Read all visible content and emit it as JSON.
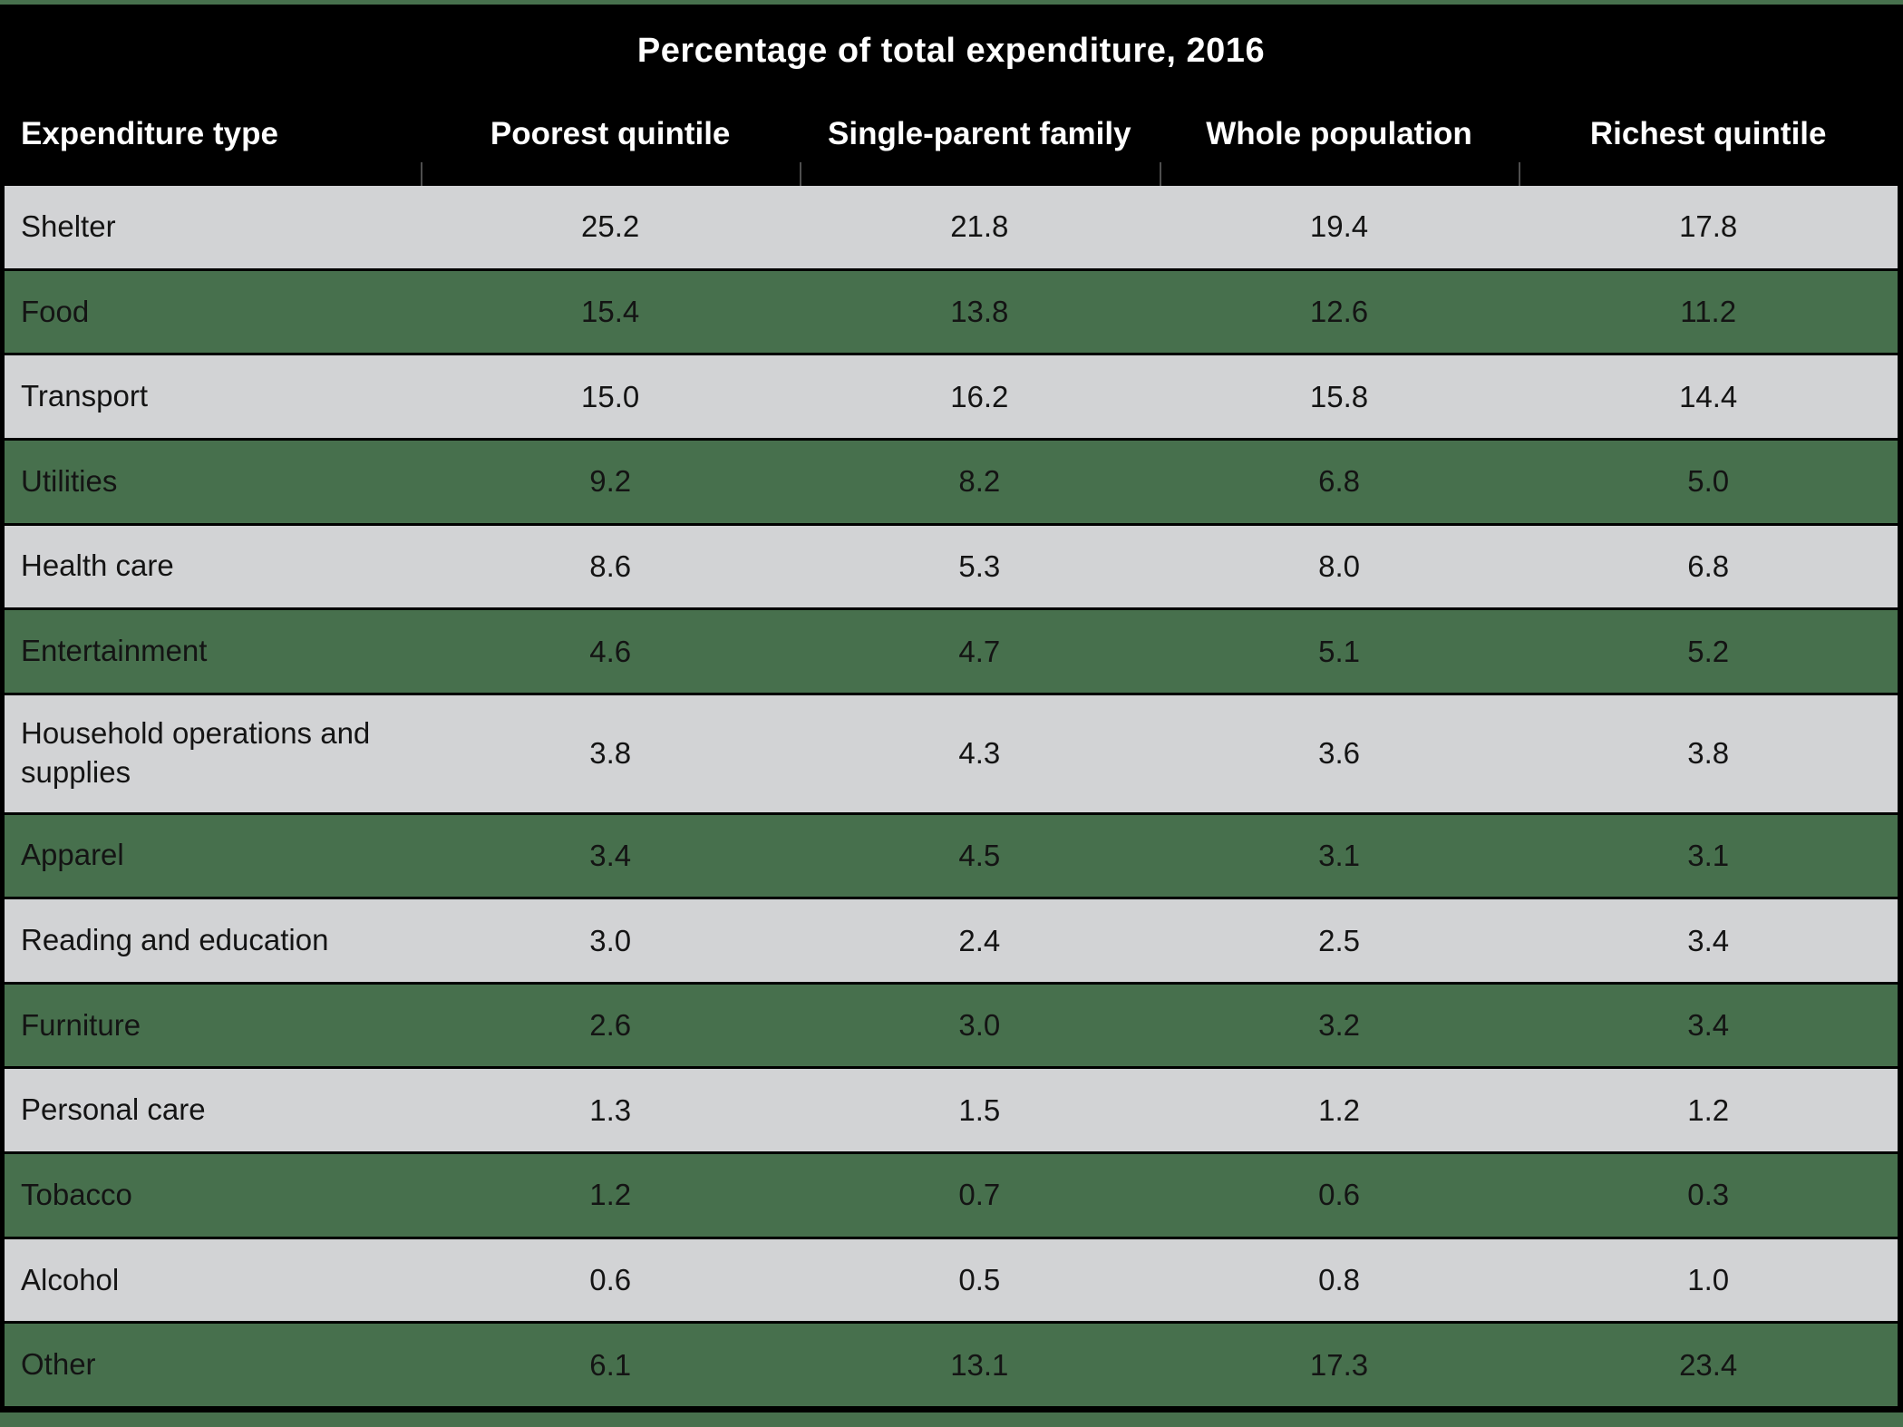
{
  "title": "Percentage of total expenditure, 2016",
  "columns": [
    "Expenditure type",
    "Poorest quintile",
    "Single-parent family",
    "Whole population",
    "Richest quintile"
  ],
  "rows": [
    {
      "label": "Shelter",
      "values": [
        "25.2",
        "21.8",
        "19.4",
        "17.8"
      ]
    },
    {
      "label": "Food",
      "values": [
        "15.4",
        "13.8",
        "12.6",
        "11.2"
      ]
    },
    {
      "label": "Transport",
      "values": [
        "15.0",
        "16.2",
        "15.8",
        "14.4"
      ]
    },
    {
      "label": "Utilities",
      "values": [
        "9.2",
        "8.2",
        "6.8",
        "5.0"
      ]
    },
    {
      "label": "Health care",
      "values": [
        "8.6",
        "5.3",
        "8.0",
        "6.8"
      ]
    },
    {
      "label": "Entertainment",
      "values": [
        "4.6",
        "4.7",
        "5.1",
        "5.2"
      ]
    },
    {
      "label": "Household operations and supplies",
      "values": [
        "3.8",
        "4.3",
        "3.6",
        "3.8"
      ]
    },
    {
      "label": "Apparel",
      "values": [
        "3.4",
        "4.5",
        "3.1",
        "3.1"
      ]
    },
    {
      "label": "Reading and education",
      "values": [
        "3.0",
        "2.4",
        "2.5",
        "3.4"
      ]
    },
    {
      "label": "Furniture",
      "values": [
        "2.6",
        "3.0",
        "3.2",
        "3.4"
      ]
    },
    {
      "label": "Personal care",
      "values": [
        "1.3",
        "1.5",
        "1.2",
        "1.2"
      ]
    },
    {
      "label": "Tobacco",
      "values": [
        "1.2",
        "0.7",
        "0.6",
        "0.3"
      ]
    },
    {
      "label": "Alcohol",
      "values": [
        "0.6",
        "0.5",
        "0.8",
        "1.0"
      ]
    },
    {
      "label": "Other",
      "values": [
        "6.1",
        "13.1",
        "17.3",
        "23.4"
      ]
    }
  ],
  "colors": {
    "header_bg": "#000000",
    "header_text": "#ffffff",
    "row_gray": "#d2d3d5",
    "row_green": "#47704d",
    "body_text": "#141414",
    "frame_border": "#000000",
    "outer_background": "#47704d"
  },
  "chart_data": {
    "type": "table",
    "title": "Percentage of total expenditure, 2016",
    "categories": [
      "Shelter",
      "Food",
      "Transport",
      "Utilities",
      "Health care",
      "Entertainment",
      "Household operations and supplies",
      "Apparel",
      "Reading and education",
      "Furniture",
      "Personal care",
      "Tobacco",
      "Alcohol",
      "Other"
    ],
    "series": [
      {
        "name": "Poorest quintile",
        "values": [
          25.2,
          15.4,
          15.0,
          9.2,
          8.6,
          4.6,
          3.8,
          3.4,
          3.0,
          2.6,
          1.3,
          1.2,
          0.6,
          6.1
        ]
      },
      {
        "name": "Single-parent family",
        "values": [
          21.8,
          13.8,
          16.2,
          8.2,
          5.3,
          4.7,
          4.3,
          4.5,
          2.4,
          3.0,
          1.5,
          0.7,
          0.5,
          13.1
        ]
      },
      {
        "name": "Whole population",
        "values": [
          19.4,
          12.6,
          15.8,
          6.8,
          8.0,
          5.1,
          3.6,
          3.1,
          2.5,
          3.2,
          1.2,
          0.6,
          0.8,
          17.3
        ]
      },
      {
        "name": "Richest quintile",
        "values": [
          17.8,
          11.2,
          14.4,
          5.0,
          6.8,
          5.2,
          3.8,
          3.1,
          3.4,
          3.4,
          1.2,
          0.3,
          1.0,
          23.4
        ]
      }
    ],
    "units": "percent of total expenditure",
    "layout": {
      "striped_rows": true,
      "stripe_colors": [
        "#d2d3d5",
        "#47704d"
      ],
      "header_background": "#000000"
    }
  }
}
